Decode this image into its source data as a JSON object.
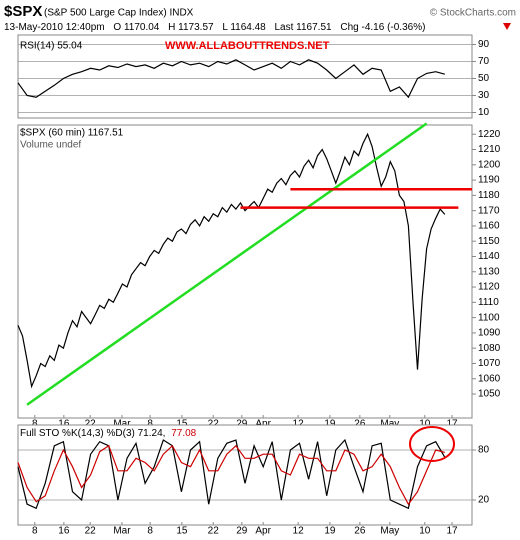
{
  "header": {
    "symbol": "$SPX",
    "name": "(S&P 500 Large Cap Index) INDX",
    "source": "© StockCharts.com",
    "date": "13-May-2010 12:40pm",
    "open": "O 1170.04",
    "high": "H 1173.57",
    "low": "L 1164.48",
    "last": "Last 1167.51",
    "change": "Chg -4.16 (-0.36%)"
  },
  "chart_data": [
    {
      "type": "line",
      "annotation": "WWW.ALLABOUTTRENDS.NET",
      "xlim": [
        0,
        100
      ],
      "ylim": [
        0,
        100
      ],
      "yticks": [
        10,
        30,
        50,
        70,
        90
      ],
      "grid": true,
      "x": [
        0,
        2,
        4,
        6,
        8,
        10,
        12,
        14,
        16,
        18,
        20,
        22,
        24,
        26,
        28,
        30,
        32,
        34,
        36,
        38,
        40,
        42,
        44,
        46,
        48,
        50,
        52,
        54,
        56,
        58,
        60,
        62,
        64,
        66,
        68,
        70,
        72,
        74,
        76,
        78,
        80,
        82,
        84,
        86,
        88,
        90,
        92,
        94
      ],
      "series": [
        {
          "name": "RSI(14) 55.04",
          "color": "#000000",
          "values": [
            45,
            30,
            28,
            35,
            42,
            50,
            55,
            58,
            62,
            60,
            65,
            63,
            67,
            64,
            66,
            62,
            68,
            65,
            70,
            66,
            68,
            64,
            70,
            67,
            72,
            66,
            60,
            64,
            68,
            62,
            70,
            66,
            72,
            68,
            60,
            50,
            58,
            66,
            55,
            62,
            60,
            35,
            40,
            28,
            50,
            56,
            58,
            55.04
          ]
        }
      ]
    },
    {
      "type": "line",
      "volume_label": "Volume undef",
      "xlim": [
        0,
        100
      ],
      "ylim": [
        1033,
        1228
      ],
      "grid": false,
      "yticks": [
        1050,
        1060,
        1070,
        1080,
        1090,
        1100,
        1110,
        1120,
        1130,
        1140,
        1150,
        1160,
        1170,
        1180,
        1190,
        1200,
        1210,
        1220
      ],
      "xticks": [
        {
          "value": 3.7,
          "label": "8"
        },
        {
          "value": 10.1,
          "label": "16"
        },
        {
          "value": 15.9,
          "label": "22"
        },
        {
          "value": 22.9,
          "label": "Mar"
        },
        {
          "value": 29.1,
          "label": "8"
        },
        {
          "value": 36.1,
          "label": "15"
        },
        {
          "value": 43,
          "label": "22"
        },
        {
          "value": 49.3,
          "label": "29"
        },
        {
          "value": 54,
          "label": "Apr"
        },
        {
          "value": 61.7,
          "label": "12"
        },
        {
          "value": 68.7,
          "label": "19"
        },
        {
          "value": 75.3,
          "label": "26"
        },
        {
          "value": 81.9,
          "label": "May"
        },
        {
          "value": 89.6,
          "label": "10"
        },
        {
          "value": 95.6,
          "label": "17"
        }
      ],
      "x": [
        0,
        1,
        2,
        3,
        4,
        5,
        6,
        7,
        8,
        9,
        10,
        11,
        12,
        13,
        14,
        15,
        16,
        17,
        18,
        19,
        20,
        21,
        22,
        23,
        24,
        25,
        26,
        27,
        28,
        29,
        30,
        31,
        32,
        33,
        34,
        35,
        36,
        37,
        38,
        39,
        40,
        41,
        42,
        43,
        44,
        45,
        46,
        47,
        48,
        49,
        50,
        51,
        52,
        53,
        54,
        55,
        56,
        57,
        58,
        59,
        60,
        61,
        62,
        63,
        64,
        65,
        66,
        67,
        68,
        69,
        70,
        71,
        72,
        73,
        74,
        75,
        76,
        77,
        78,
        79,
        80,
        81,
        82,
        83,
        84,
        85,
        86,
        87,
        88,
        89,
        90,
        91,
        92,
        93,
        94
      ],
      "series": [
        {
          "name": "$SPX (60 min) 1167.51",
          "color": "#000000",
          "values": [
            1095,
            1088,
            1072,
            1055,
            1062,
            1070,
            1068,
            1075,
            1072,
            1082,
            1080,
            1090,
            1098,
            1094,
            1104,
            1100,
            1096,
            1102,
            1108,
            1106,
            1112,
            1110,
            1116,
            1122,
            1120,
            1128,
            1132,
            1136,
            1134,
            1140,
            1144,
            1142,
            1148,
            1152,
            1150,
            1156,
            1158,
            1155,
            1161,
            1164,
            1160,
            1166,
            1163,
            1168,
            1166,
            1172,
            1169,
            1174,
            1171,
            1175,
            1170,
            1173,
            1176,
            1172,
            1178,
            1184,
            1182,
            1188,
            1191,
            1187,
            1193,
            1196,
            1192,
            1199,
            1203,
            1198,
            1206,
            1210,
            1204,
            1196,
            1188,
            1196,
            1205,
            1200,
            1209,
            1206,
            1214,
            1220,
            1212,
            1198,
            1186,
            1192,
            1202,
            1196,
            1180,
            1176,
            1160,
            1110,
            1066,
            1112,
            1145,
            1158,
            1165,
            1171,
            1167.51
          ]
        }
      ],
      "lines": [
        {
          "color": "#22dd22",
          "x": [
            2,
            90
          ],
          "y": [
            1043,
            1227
          ]
        },
        {
          "color": "#ee0000",
          "x": [
            60,
            100
          ],
          "y": [
            1184,
            1184
          ]
        },
        {
          "color": "#ee0000",
          "x": [
            49,
            97
          ],
          "y": [
            1172,
            1172
          ]
        }
      ]
    },
    {
      "type": "line",
      "legend": "Full STO %K(14,3) %D(3) 71.24,",
      "legend_value": "77.08",
      "xlim": [
        0,
        100
      ],
      "ylim": [
        -10,
        110
      ],
      "yticks": [
        20,
        80
      ],
      "grid": true,
      "xticks": [
        {
          "value": 3.7,
          "label": "8"
        },
        {
          "value": 10.1,
          "label": "16"
        },
        {
          "value": 15.9,
          "label": "22"
        },
        {
          "value": 22.9,
          "label": "Mar"
        },
        {
          "value": 29.1,
          "label": "8"
        },
        {
          "value": 36.1,
          "label": "15"
        },
        {
          "value": 43,
          "label": "22"
        },
        {
          "value": 49.3,
          "label": "29"
        },
        {
          "value": 54,
          "label": "Apr"
        },
        {
          "value": 61.7,
          "label": "12"
        },
        {
          "value": 68.7,
          "label": "19"
        },
        {
          "value": 75.3,
          "label": "26"
        },
        {
          "value": 81.9,
          "label": "May"
        },
        {
          "value": 89.6,
          "label": "10"
        },
        {
          "value": 95.6,
          "label": "17"
        }
      ],
      "x": [
        0,
        2,
        4,
        6,
        8,
        10,
        12,
        14,
        16,
        18,
        20,
        22,
        24,
        26,
        28,
        30,
        32,
        34,
        36,
        38,
        40,
        42,
        44,
        46,
        48,
        50,
        52,
        54,
        56,
        58,
        60,
        62,
        64,
        66,
        68,
        70,
        72,
        74,
        76,
        78,
        80,
        82,
        84,
        86,
        88,
        90,
        92,
        94
      ],
      "series": [
        {
          "color": "#000000",
          "values": [
            60,
            15,
            10,
            40,
            85,
            90,
            30,
            20,
            75,
            90,
            85,
            20,
            70,
            88,
            40,
            60,
            92,
            85,
            30,
            80,
            90,
            15,
            70,
            88,
            92,
            40,
            85,
            60,
            90,
            20,
            80,
            88,
            45,
            90,
            25,
            80,
            92,
            60,
            30,
            85,
            88,
            20,
            15,
            10,
            60,
            85,
            90,
            71.24
          ]
        },
        {
          "color": "#cc0000",
          "values": [
            65,
            35,
            18,
            25,
            55,
            80,
            60,
            35,
            50,
            78,
            85,
            55,
            55,
            70,
            65,
            55,
            75,
            85,
            65,
            60,
            80,
            55,
            55,
            75,
            85,
            70,
            70,
            75,
            75,
            55,
            50,
            75,
            70,
            70,
            55,
            55,
            80,
            75,
            55,
            60,
            75,
            60,
            35,
            15,
            30,
            55,
            80,
            77.08
          ]
        }
      ]
    }
  ]
}
